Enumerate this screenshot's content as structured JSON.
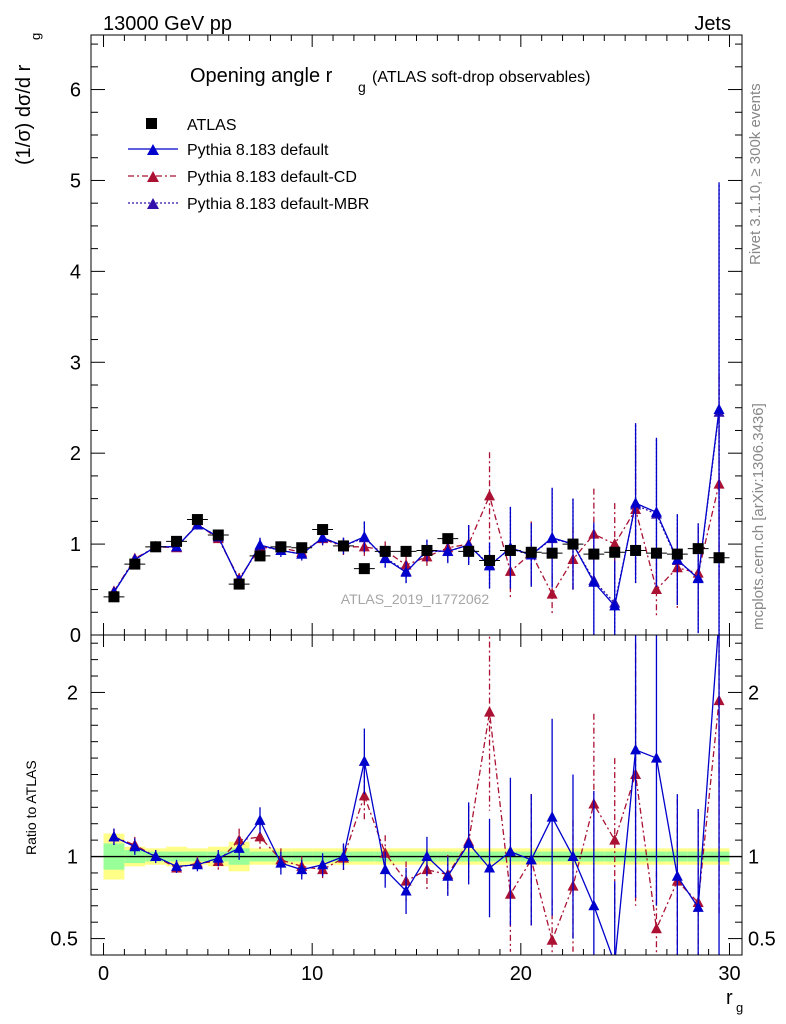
{
  "header": {
    "left": "13000 GeV pp",
    "right": "Jets"
  },
  "title": {
    "main": "Opening angle r",
    "sub": "g",
    "suffix": "(ATLAS soft-drop observables)"
  },
  "side_labels": {
    "rivet": "Rivet 3.1.10, ≥ 300k events",
    "mcplots": "mcplots.cern.ch [arXiv:1306.3436]"
  },
  "watermark": "ATLAS_2019_I1772062",
  "colors": {
    "data": "#000000",
    "default": "#0000cc",
    "cd": "#aa1133",
    "mbr": "#3311aa",
    "band_green": "#99ff99",
    "band_yellow": "#ffff88"
  },
  "chart_data": {
    "type": "scatter",
    "xlabel": "r",
    "xlabel_sub": "g",
    "ylabel": "(1/σ) dσ/d r",
    "ylabel_sub": "g",
    "ratio_ylabel": "Ratio to ATLAS",
    "xlim": [
      -0.6,
      30.6
    ],
    "ylim_main": [
      0,
      6.6
    ],
    "ylim_ratio": [
      0.4,
      2.35
    ],
    "x_ticks": [
      0,
      10,
      20,
      30
    ],
    "y_ticks_main": [
      0,
      1,
      2,
      3,
      4,
      5,
      6
    ],
    "y_ticks_ratio": [
      0.5,
      1,
      2
    ],
    "x": [
      0.5,
      1.5,
      2.5,
      3.5,
      4.5,
      5.5,
      6.5,
      7.5,
      8.5,
      9.5,
      10.5,
      11.5,
      12.5,
      13.5,
      14.5,
      15.5,
      16.5,
      17.5,
      18.5,
      19.5,
      20.5,
      21.5,
      22.5,
      23.5,
      24.5,
      25.5,
      26.5,
      27.5,
      28.5,
      29.5
    ],
    "series": [
      {
        "name": "ATLAS",
        "values": [
          0.42,
          0.78,
          0.97,
          1.03,
          1.27,
          1.1,
          0.56,
          0.87,
          0.97,
          0.96,
          1.16,
          0.98,
          0.73,
          0.92,
          0.92,
          0.93,
          1.06,
          0.92,
          0.82,
          0.93,
          0.91,
          0.9,
          1.0,
          0.89,
          0.91,
          0.93,
          0.9,
          0.89,
          0.95,
          0.85
        ],
        "errors": [
          0.02,
          0.02,
          0.02,
          0.02,
          0.03,
          0.02,
          0.02,
          0.02,
          0.02,
          0.02,
          0.02,
          0.02,
          0.02,
          0.02,
          0.02,
          0.02,
          0.02,
          0.02,
          0.02,
          0.02,
          0.02,
          0.02,
          0.02,
          0.02,
          0.02,
          0.02,
          0.02,
          0.02,
          0.02,
          0.02
        ]
      },
      {
        "name": "Pythia 8.183 default",
        "values": [
          0.47,
          0.83,
          0.97,
          0.97,
          1.21,
          1.08,
          0.6,
          0.99,
          0.93,
          0.89,
          1.07,
          0.98,
          1.08,
          0.84,
          0.69,
          0.93,
          0.92,
          0.99,
          0.76,
          0.96,
          0.88,
          1.07,
          1.0,
          0.58,
          0.32,
          1.45,
          1.35,
          0.83,
          0.62,
          2.48
        ],
        "errors": [
          0.05,
          0.05,
          0.04,
          0.04,
          0.05,
          0.05,
          0.05,
          0.08,
          0.07,
          0.07,
          0.08,
          0.09,
          0.17,
          0.1,
          0.12,
          0.12,
          0.13,
          0.22,
          0.25,
          0.45,
          0.35,
          0.55,
          0.5,
          0.65,
          0.5,
          0.88,
          0.82,
          0.5,
          0.6,
          2.5
        ]
      },
      {
        "name": "Pythia 8.183 default-CD",
        "values": [
          0.48,
          0.84,
          0.97,
          0.96,
          1.22,
          1.06,
          0.62,
          0.96,
          0.96,
          0.91,
          1.06,
          0.97,
          0.97,
          0.93,
          0.77,
          0.86,
          0.96,
          1.0,
          1.53,
          0.7,
          0.9,
          0.45,
          0.83,
          1.11,
          1.0,
          1.38,
          0.5,
          0.74,
          0.68,
          1.66
        ],
        "errors": [
          0.05,
          0.05,
          0.04,
          0.04,
          0.05,
          0.05,
          0.06,
          0.07,
          0.07,
          0.07,
          0.08,
          0.09,
          0.12,
          0.1,
          0.1,
          0.12,
          0.13,
          0.2,
          0.48,
          0.3,
          0.35,
          0.22,
          0.35,
          0.5,
          0.45,
          0.7,
          0.3,
          0.45,
          0.5,
          1.2
        ]
      },
      {
        "name": "Pythia 8.183 default-MBR",
        "values": [
          0.47,
          0.83,
          0.97,
          0.97,
          1.21,
          1.08,
          0.6,
          0.98,
          0.93,
          0.89,
          1.07,
          0.98,
          1.07,
          0.85,
          0.7,
          0.92,
          0.92,
          0.99,
          0.77,
          0.95,
          0.88,
          1.06,
          1.0,
          0.6,
          0.35,
          1.43,
          1.33,
          0.82,
          0.63,
          2.45
        ],
        "errors": [
          0.05,
          0.05,
          0.04,
          0.04,
          0.05,
          0.05,
          0.05,
          0.08,
          0.07,
          0.07,
          0.08,
          0.09,
          0.17,
          0.1,
          0.12,
          0.12,
          0.13,
          0.22,
          0.25,
          0.45,
          0.35,
          0.55,
          0.5,
          0.65,
          0.5,
          0.88,
          0.82,
          0.5,
          0.6,
          2.5
        ]
      }
    ],
    "ratio": {
      "default_values": [
        1.12,
        1.06,
        1.0,
        0.94,
        0.95,
        0.99,
        1.05,
        1.22,
        0.96,
        0.92,
        0.95,
        1.0,
        1.58,
        0.92,
        0.79,
        1.0,
        0.88,
        1.08,
        0.93,
        1.03,
        0.98,
        1.24,
        1.0,
        0.7,
        0.35,
        1.65,
        1.6,
        0.88,
        0.69,
        2.45
      ],
      "default_errors": [
        0.05,
        0.05,
        0.04,
        0.04,
        0.04,
        0.05,
        0.07,
        0.08,
        0.07,
        0.06,
        0.07,
        0.08,
        0.2,
        0.11,
        0.14,
        0.12,
        0.12,
        0.25,
        0.3,
        0.45,
        0.4,
        0.6,
        0.5,
        0.7,
        0.5,
        0.9,
        0.9,
        0.5,
        0.6,
        2.5
      ],
      "cd_values": [
        1.12,
        1.07,
        1.0,
        0.93,
        0.96,
        0.97,
        1.1,
        1.12,
        0.98,
        0.94,
        0.92,
        0.99,
        1.37,
        1.02,
        0.85,
        0.92,
        0.89,
        1.09,
        1.88,
        0.77,
        0.98,
        0.49,
        0.82,
        1.32,
        1.1,
        1.5,
        0.56,
        0.85,
        0.72,
        1.95
      ],
      "cd_errors": [
        0.05,
        0.05,
        0.04,
        0.04,
        0.04,
        0.05,
        0.07,
        0.08,
        0.07,
        0.06,
        0.07,
        0.08,
        0.15,
        0.11,
        0.12,
        0.12,
        0.12,
        0.22,
        0.6,
        0.35,
        0.4,
        0.25,
        0.4,
        0.55,
        0.5,
        0.8,
        0.35,
        0.5,
        0.55,
        1.3
      ],
      "band_inner": [
        0.08,
        0.04,
        0.03,
        0.03,
        0.03,
        0.03,
        0.05,
        0.03,
        0.03,
        0.03,
        0.03,
        0.03,
        0.03,
        0.03,
        0.03,
        0.03,
        0.03,
        0.03,
        0.03,
        0.03,
        0.03,
        0.03,
        0.03,
        0.03,
        0.03,
        0.03,
        0.03,
        0.03,
        0.03,
        0.03
      ],
      "band_outer": [
        0.14,
        0.06,
        0.05,
        0.06,
        0.05,
        0.06,
        0.09,
        0.05,
        0.05,
        0.05,
        0.05,
        0.05,
        0.05,
        0.05,
        0.05,
        0.05,
        0.05,
        0.05,
        0.05,
        0.05,
        0.05,
        0.05,
        0.05,
        0.05,
        0.05,
        0.05,
        0.05,
        0.05,
        0.05,
        0.05
      ]
    }
  }
}
